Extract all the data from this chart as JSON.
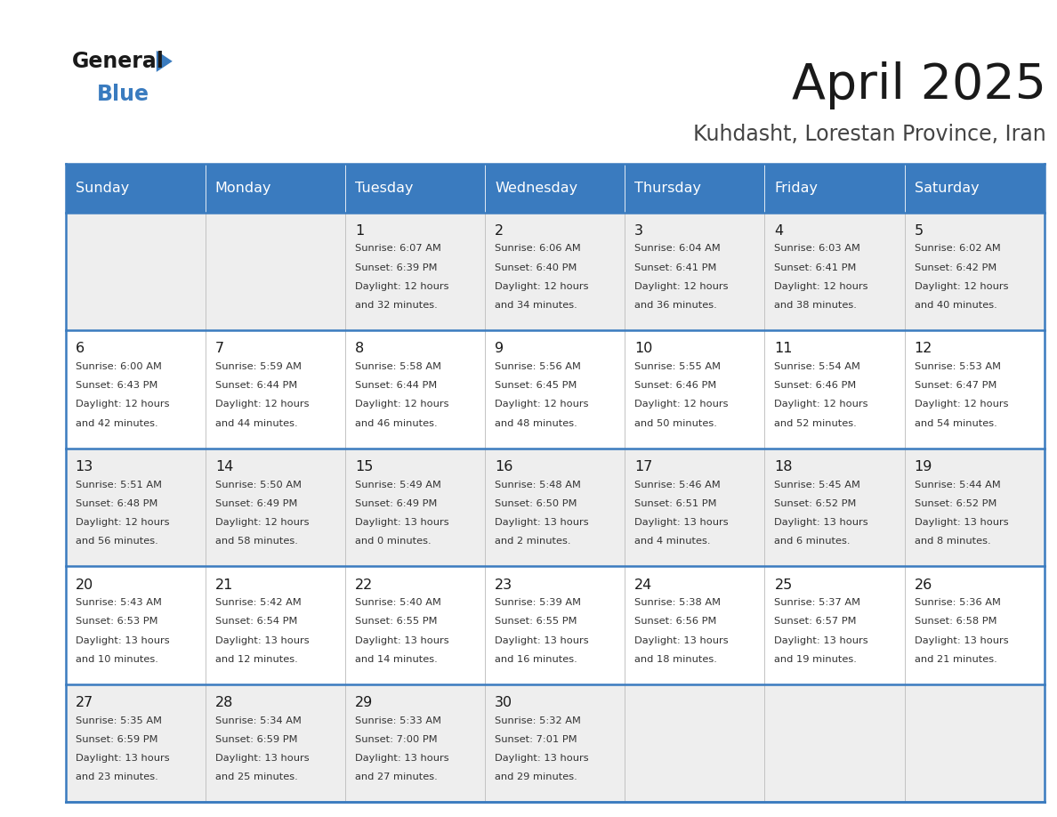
{
  "title": "April 2025",
  "subtitle": "Kuhdasht, Lorestan Province, Iran",
  "header_color": "#3a7bbf",
  "header_text_color": "#ffffff",
  "day_names": [
    "Sunday",
    "Monday",
    "Tuesday",
    "Wednesday",
    "Thursday",
    "Friday",
    "Saturday"
  ],
  "bg_color": "#ffffff",
  "row_bg": [
    "#eeeeee",
    "#ffffff",
    "#eeeeee",
    "#ffffff",
    "#eeeeee"
  ],
  "border_color": "#3a7bbf",
  "text_color": "#222222",
  "days": [
    {
      "day": 1,
      "col": 2,
      "row": 0,
      "sunrise": "6:07 AM",
      "sunset": "6:39 PM",
      "daylight_h": "12 hours",
      "daylight_m": "and 32 minutes."
    },
    {
      "day": 2,
      "col": 3,
      "row": 0,
      "sunrise": "6:06 AM",
      "sunset": "6:40 PM",
      "daylight_h": "12 hours",
      "daylight_m": "and 34 minutes."
    },
    {
      "day": 3,
      "col": 4,
      "row": 0,
      "sunrise": "6:04 AM",
      "sunset": "6:41 PM",
      "daylight_h": "12 hours",
      "daylight_m": "and 36 minutes."
    },
    {
      "day": 4,
      "col": 5,
      "row": 0,
      "sunrise": "6:03 AM",
      "sunset": "6:41 PM",
      "daylight_h": "12 hours",
      "daylight_m": "and 38 minutes."
    },
    {
      "day": 5,
      "col": 6,
      "row": 0,
      "sunrise": "6:02 AM",
      "sunset": "6:42 PM",
      "daylight_h": "12 hours",
      "daylight_m": "and 40 minutes."
    },
    {
      "day": 6,
      "col": 0,
      "row": 1,
      "sunrise": "6:00 AM",
      "sunset": "6:43 PM",
      "daylight_h": "12 hours",
      "daylight_m": "and 42 minutes."
    },
    {
      "day": 7,
      "col": 1,
      "row": 1,
      "sunrise": "5:59 AM",
      "sunset": "6:44 PM",
      "daylight_h": "12 hours",
      "daylight_m": "and 44 minutes."
    },
    {
      "day": 8,
      "col": 2,
      "row": 1,
      "sunrise": "5:58 AM",
      "sunset": "6:44 PM",
      "daylight_h": "12 hours",
      "daylight_m": "and 46 minutes."
    },
    {
      "day": 9,
      "col": 3,
      "row": 1,
      "sunrise": "5:56 AM",
      "sunset": "6:45 PM",
      "daylight_h": "12 hours",
      "daylight_m": "and 48 minutes."
    },
    {
      "day": 10,
      "col": 4,
      "row": 1,
      "sunrise": "5:55 AM",
      "sunset": "6:46 PM",
      "daylight_h": "12 hours",
      "daylight_m": "and 50 minutes."
    },
    {
      "day": 11,
      "col": 5,
      "row": 1,
      "sunrise": "5:54 AM",
      "sunset": "6:46 PM",
      "daylight_h": "12 hours",
      "daylight_m": "and 52 minutes."
    },
    {
      "day": 12,
      "col": 6,
      "row": 1,
      "sunrise": "5:53 AM",
      "sunset": "6:47 PM",
      "daylight_h": "12 hours",
      "daylight_m": "and 54 minutes."
    },
    {
      "day": 13,
      "col": 0,
      "row": 2,
      "sunrise": "5:51 AM",
      "sunset": "6:48 PM",
      "daylight_h": "12 hours",
      "daylight_m": "and 56 minutes."
    },
    {
      "day": 14,
      "col": 1,
      "row": 2,
      "sunrise": "5:50 AM",
      "sunset": "6:49 PM",
      "daylight_h": "12 hours",
      "daylight_m": "and 58 minutes."
    },
    {
      "day": 15,
      "col": 2,
      "row": 2,
      "sunrise": "5:49 AM",
      "sunset": "6:49 PM",
      "daylight_h": "13 hours",
      "daylight_m": "and 0 minutes."
    },
    {
      "day": 16,
      "col": 3,
      "row": 2,
      "sunrise": "5:48 AM",
      "sunset": "6:50 PM",
      "daylight_h": "13 hours",
      "daylight_m": "and 2 minutes."
    },
    {
      "day": 17,
      "col": 4,
      "row": 2,
      "sunrise": "5:46 AM",
      "sunset": "6:51 PM",
      "daylight_h": "13 hours",
      "daylight_m": "and 4 minutes."
    },
    {
      "day": 18,
      "col": 5,
      "row": 2,
      "sunrise": "5:45 AM",
      "sunset": "6:52 PM",
      "daylight_h": "13 hours",
      "daylight_m": "and 6 minutes."
    },
    {
      "day": 19,
      "col": 6,
      "row": 2,
      "sunrise": "5:44 AM",
      "sunset": "6:52 PM",
      "daylight_h": "13 hours",
      "daylight_m": "and 8 minutes."
    },
    {
      "day": 20,
      "col": 0,
      "row": 3,
      "sunrise": "5:43 AM",
      "sunset": "6:53 PM",
      "daylight_h": "13 hours",
      "daylight_m": "and 10 minutes."
    },
    {
      "day": 21,
      "col": 1,
      "row": 3,
      "sunrise": "5:42 AM",
      "sunset": "6:54 PM",
      "daylight_h": "13 hours",
      "daylight_m": "and 12 minutes."
    },
    {
      "day": 22,
      "col": 2,
      "row": 3,
      "sunrise": "5:40 AM",
      "sunset": "6:55 PM",
      "daylight_h": "13 hours",
      "daylight_m": "and 14 minutes."
    },
    {
      "day": 23,
      "col": 3,
      "row": 3,
      "sunrise": "5:39 AM",
      "sunset": "6:55 PM",
      "daylight_h": "13 hours",
      "daylight_m": "and 16 minutes."
    },
    {
      "day": 24,
      "col": 4,
      "row": 3,
      "sunrise": "5:38 AM",
      "sunset": "6:56 PM",
      "daylight_h": "13 hours",
      "daylight_m": "and 18 minutes."
    },
    {
      "day": 25,
      "col": 5,
      "row": 3,
      "sunrise": "5:37 AM",
      "sunset": "6:57 PM",
      "daylight_h": "13 hours",
      "daylight_m": "and 19 minutes."
    },
    {
      "day": 26,
      "col": 6,
      "row": 3,
      "sunrise": "5:36 AM",
      "sunset": "6:58 PM",
      "daylight_h": "13 hours",
      "daylight_m": "and 21 minutes."
    },
    {
      "day": 27,
      "col": 0,
      "row": 4,
      "sunrise": "5:35 AM",
      "sunset": "6:59 PM",
      "daylight_h": "13 hours",
      "daylight_m": "and 23 minutes."
    },
    {
      "day": 28,
      "col": 1,
      "row": 4,
      "sunrise": "5:34 AM",
      "sunset": "6:59 PM",
      "daylight_h": "13 hours",
      "daylight_m": "and 25 minutes."
    },
    {
      "day": 29,
      "col": 2,
      "row": 4,
      "sunrise": "5:33 AM",
      "sunset": "7:00 PM",
      "daylight_h": "13 hours",
      "daylight_m": "and 27 minutes."
    },
    {
      "day": 30,
      "col": 3,
      "row": 4,
      "sunrise": "5:32 AM",
      "sunset": "7:01 PM",
      "daylight_h": "13 hours",
      "daylight_m": "and 29 minutes."
    }
  ]
}
